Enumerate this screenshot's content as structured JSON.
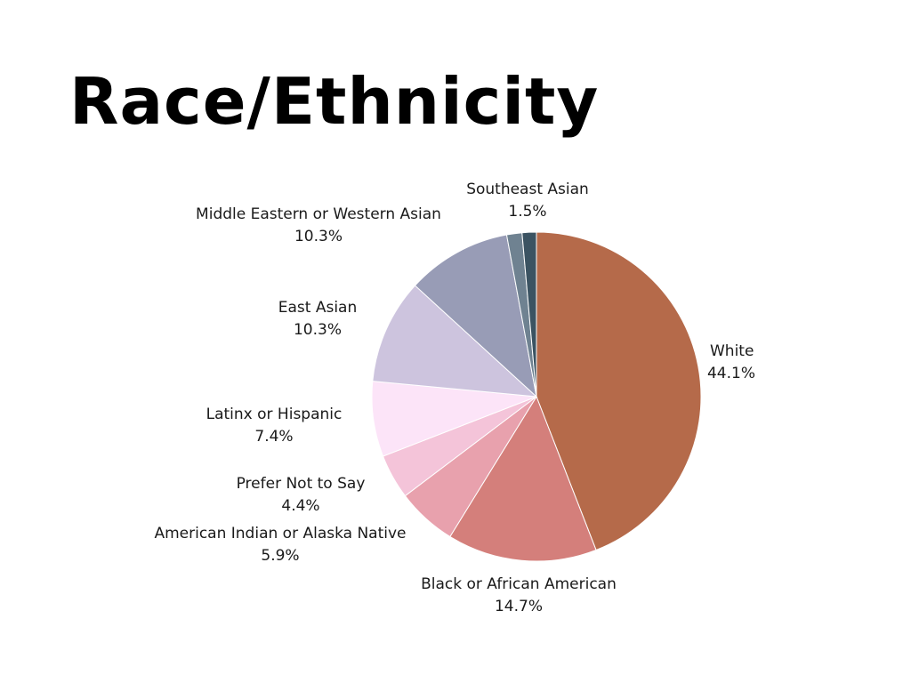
{
  "chart_data": {
    "type": "pie",
    "title": "Race/Ethnicity",
    "start": "top",
    "direction": "clockwise",
    "slices": [
      {
        "label": "White",
        "value": 44.1,
        "display": "44.1%",
        "color": "#b56a4a"
      },
      {
        "label": "Black or African American",
        "value": 14.7,
        "display": "14.7%",
        "color": "#d47f7b"
      },
      {
        "label": "American Indian or Alaska Native",
        "value": 5.9,
        "display": "5.9%",
        "color": "#e8a1ad"
      },
      {
        "label": "Prefer Not to Say",
        "value": 4.4,
        "display": "4.4%",
        "color": "#f4c4d9"
      },
      {
        "label": "Latinx or Hispanic",
        "value": 7.4,
        "display": "7.4%",
        "color": "#fce4f8"
      },
      {
        "label": "East Asian",
        "value": 10.3,
        "display": "10.3%",
        "color": "#cdc4de"
      },
      {
        "label": "Middle Eastern or Western Asian",
        "value": 10.3,
        "display": "10.3%",
        "color": "#989cb6"
      },
      {
        "label": "Southeast Asian",
        "value": 1.5,
        "display": "1.5%",
        "color": "#6f8291"
      },
      {
        "label": "",
        "value": 1.4,
        "display": "",
        "color": "#3b5362"
      }
    ]
  }
}
